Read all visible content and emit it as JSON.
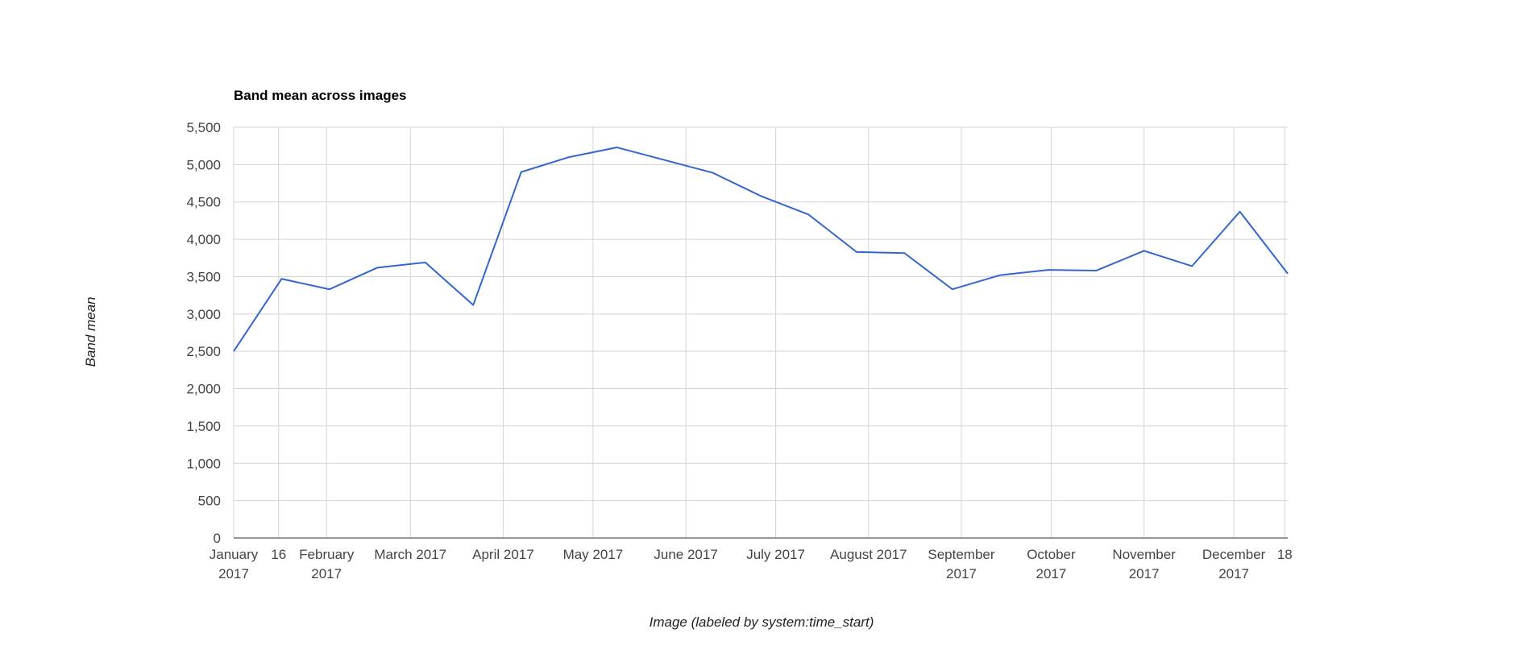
{
  "chart_data": {
    "type": "line",
    "title": "Band mean across images",
    "x_label": "Image (labeled by system:time_start)",
    "y_label": "Band mean",
    "x": [
      "2017-01-01",
      "2017-01-17",
      "2017-02-02",
      "2017-02-18",
      "2017-03-06",
      "2017-03-22",
      "2017-04-07",
      "2017-04-23",
      "2017-05-09",
      "2017-05-25",
      "2017-06-10",
      "2017-06-26",
      "2017-07-12",
      "2017-07-28",
      "2017-08-13",
      "2017-08-29",
      "2017-09-14",
      "2017-09-30",
      "2017-10-16",
      "2017-11-01",
      "2017-11-17",
      "2017-12-03",
      "2017-12-19"
    ],
    "series": [
      {
        "name": "Band mean",
        "color": "#3366cc",
        "values": [
          2500,
          3470,
          3330,
          3620,
          3690,
          3120,
          4900,
          5100,
          5230,
          5060,
          4890,
          4580,
          4330,
          3830,
          3815,
          3330,
          3520,
          3590,
          3580,
          3845,
          3640,
          4370,
          3540
        ]
      }
    ],
    "xlim": [
      "2017-01-01",
      "2017-12-19"
    ],
    "xticks": [
      {
        "value": "2017-01-01",
        "label": "January 2017"
      },
      {
        "value": "2017-01-16",
        "label": "16"
      },
      {
        "value": "2017-02-01",
        "label": "February 2017"
      },
      {
        "value": "2017-03-01",
        "label": "March 2017"
      },
      {
        "value": "2017-04-01",
        "label": "April 2017"
      },
      {
        "value": "2017-05-01",
        "label": "May 2017"
      },
      {
        "value": "2017-06-01",
        "label": "June 2017"
      },
      {
        "value": "2017-07-01",
        "label": "July 2017"
      },
      {
        "value": "2017-08-01",
        "label": "August 2017"
      },
      {
        "value": "2017-09-01",
        "label": "September 2017"
      },
      {
        "value": "2017-10-01",
        "label": "October 2017"
      },
      {
        "value": "2017-11-01",
        "label": "November 2017"
      },
      {
        "value": "2017-12-01",
        "label": "December 2017"
      },
      {
        "value": "2017-12-18",
        "label": "18"
      }
    ],
    "ylim": [
      0,
      5500
    ],
    "yticks": [
      0,
      {
        "value": 500,
        "label": "500"
      },
      {
        "value": 1000,
        "label": "1,000"
      },
      {
        "value": 1500,
        "label": "1,500"
      },
      {
        "value": 2000,
        "label": "2,000"
      },
      {
        "value": 2500,
        "label": "2,500"
      },
      {
        "value": 3000,
        "label": "3,000"
      },
      {
        "value": 3500,
        "label": "3,500"
      },
      {
        "value": 4000,
        "label": "4,000"
      },
      {
        "value": 4500,
        "label": "4,500"
      },
      {
        "value": 5000,
        "label": "5,000"
      },
      {
        "value": 5500,
        "label": "5,500"
      }
    ],
    "grid": true
  }
}
